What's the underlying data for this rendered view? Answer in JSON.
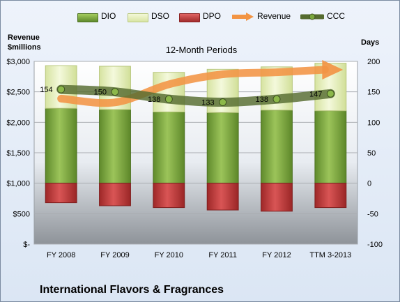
{
  "chart_data": {
    "type": "bar",
    "subtitle": "12-Month Periods",
    "company": "International Flavors & Fragrances",
    "left_axis_title": [
      "Revenue",
      "$millions"
    ],
    "right_axis_title": "Days",
    "categories": [
      "FY 2008",
      "FY 2009",
      "FY 2010",
      "FY 2011",
      "FY 2012",
      "TTM 3-2013"
    ],
    "left_ticks": [
      "$3,000",
      "$2,500",
      "$2,000",
      "$1,500",
      "$1,000",
      "$500",
      "$-"
    ],
    "right_ticks": [
      "200",
      "150",
      "100",
      "50",
      "0",
      "-50",
      "-100"
    ],
    "right_ylim": [
      -100,
      200
    ],
    "left_ylim": [
      0,
      3000
    ],
    "series": [
      {
        "name": "DIO",
        "values": [
          123,
          121,
          117,
          116,
          120,
          119
        ],
        "color": "#7aa63c"
      },
      {
        "name": "DSO",
        "values": [
          70,
          71,
          65,
          71,
          71,
          78
        ],
        "color": "#e3edb8"
      },
      {
        "name": "DPO",
        "values": [
          -32,
          -37,
          -40,
          -44,
          -46,
          -40
        ],
        "color": "#bf3b3b"
      },
      {
        "name": "Revenue",
        "values": [
          2389,
          2327,
          2623,
          2788,
          2821,
          2863
        ],
        "color": "#f29444"
      },
      {
        "name": "CCC",
        "values": [
          154,
          150,
          138,
          133,
          138,
          147
        ],
        "color": "#556b2f"
      }
    ],
    "ccc_labels": [
      "154",
      "150",
      "138",
      "133",
      "138",
      "147"
    ],
    "grid": true
  }
}
